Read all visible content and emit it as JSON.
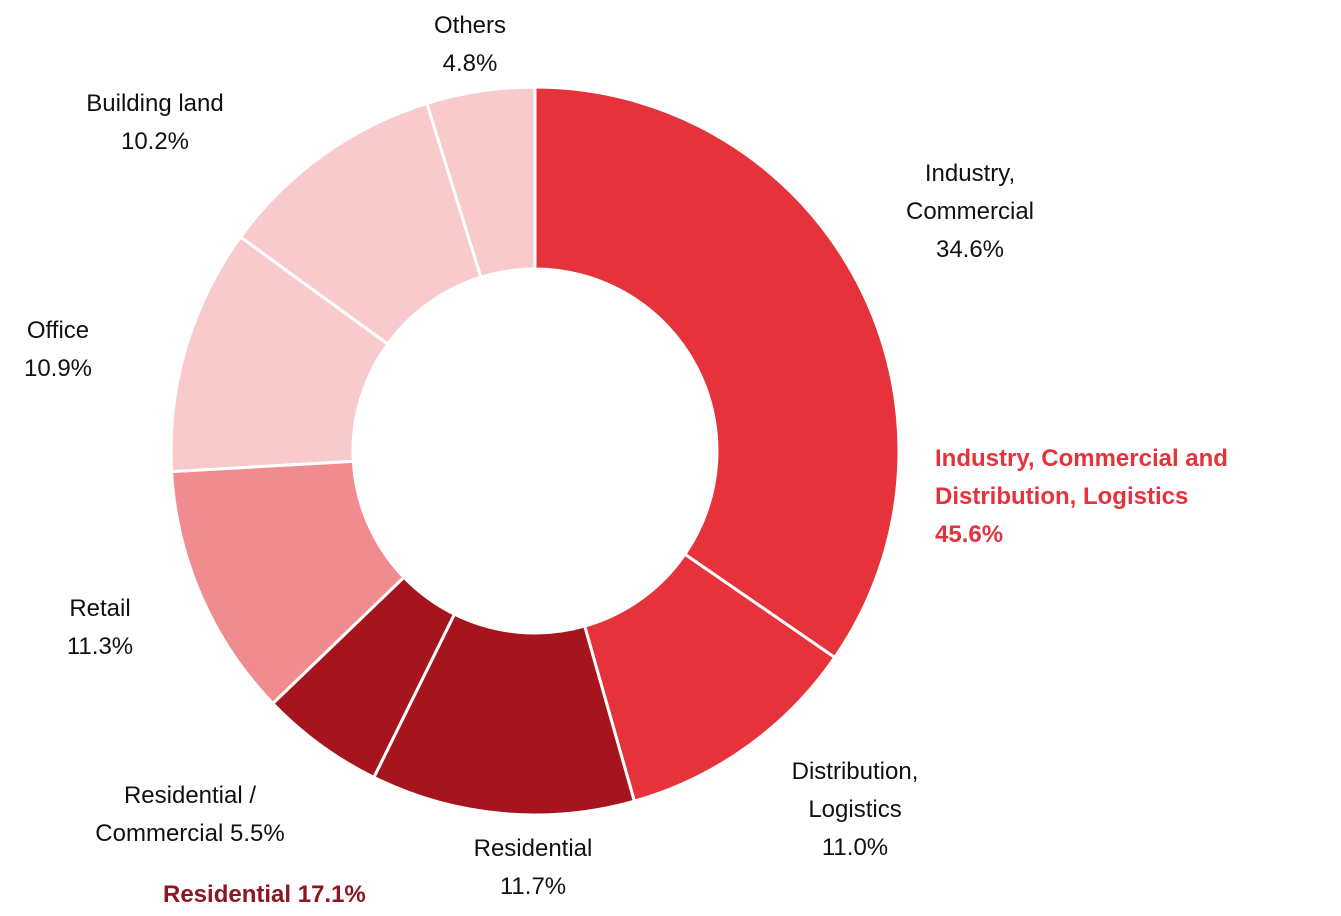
{
  "chart_data": {
    "type": "donut",
    "categories": [
      "Industry, Commercial",
      "Distribution, Logistics",
      "Residential",
      "Residential / Commercial",
      "Retail",
      "Office",
      "Building land",
      "Others"
    ],
    "values": [
      34.6,
      11.0,
      11.7,
      5.5,
      11.3,
      10.9,
      10.2,
      4.8
    ],
    "value_labels": [
      "34.6%",
      "11.0%",
      "11.7%",
      "5.5%",
      "11.3%",
      "10.9%",
      "10.2%",
      "4.8%"
    ],
    "colors": [
      "#e5323b",
      "#e5323b",
      "#a6141d",
      "#a6141d",
      "#f08c8f",
      "#f8cacc",
      "#f8cacc",
      "#f8cacc"
    ],
    "group_totals": [
      {
        "name": "Industry, Commercial and Distribution, Logistics",
        "value": 45.6,
        "value_label": "45.6%",
        "color": "#e5323b"
      },
      {
        "name": "Residential",
        "value": 17.1,
        "value_label": "17.1%",
        "color": "#8c1720"
      }
    ]
  }
}
